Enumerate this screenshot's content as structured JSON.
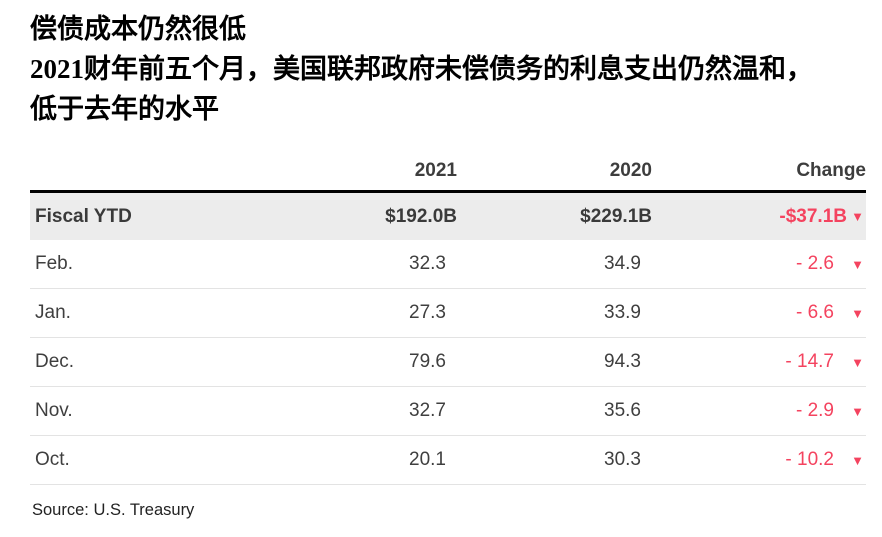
{
  "chart_data": {
    "type": "table",
    "title": "偿债成本仍然很低",
    "subtitle_lines": [
      "2021财年前五个月，美国联邦政府未偿债务的利息支出仍然温和，",
      "低于去年的水平"
    ],
    "columns": [
      "2021",
      "2020",
      "Change"
    ],
    "summary": {
      "label": "Fiscal YTD",
      "v2021": "$192.0B",
      "v2020": "$229.1B",
      "change": "-$37.1B",
      "direction": "down"
    },
    "rows": [
      {
        "label": "Feb.",
        "v2021": "32.3",
        "v2020": "34.9",
        "change": "- 2.6",
        "direction": "down"
      },
      {
        "label": "Jan.",
        "v2021": "27.3",
        "v2020": "33.9",
        "change": "- 6.6",
        "direction": "down"
      },
      {
        "label": "Dec.",
        "v2021": "79.6",
        "v2020": "94.3",
        "change": "- 14.7",
        "direction": "down"
      },
      {
        "label": "Nov.",
        "v2021": "32.7",
        "v2020": "35.6",
        "change": "- 2.9",
        "direction": "down"
      },
      {
        "label": "Oct.",
        "v2021": "20.1",
        "v2020": "30.3",
        "change": "- 10.2",
        "direction": "down"
      }
    ],
    "source": "Source: U.S. Treasury",
    "layout": {
      "legend": "none",
      "grid": "horizontal-hairlines"
    },
    "colors": {
      "negative": "#f4435f",
      "summary_row_bg": "#ececec",
      "rule": "#000000",
      "hairline": "#e3e3e3"
    }
  },
  "ui": {
    "down_arrow": "▼"
  }
}
